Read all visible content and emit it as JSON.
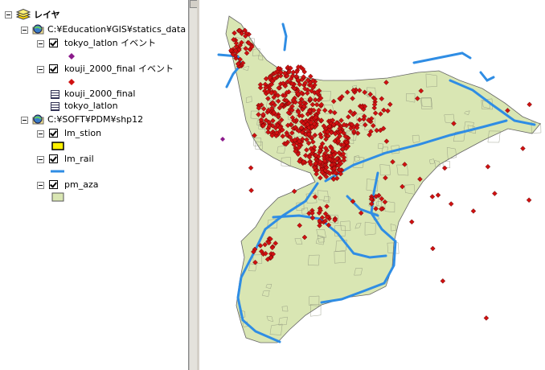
{
  "toc": {
    "title": "レイヤ",
    "groups": [
      {
        "path": "C:¥Education¥GIS¥statics_data",
        "layers": [
          {
            "name": "tokyo_latlon イベント"
          },
          {
            "name": "kouji_2000_final イベント"
          },
          {
            "name": "kouji_2000_final"
          },
          {
            "name": "tokyo_latlon"
          }
        ]
      },
      {
        "path": "C:¥SOFT¥PDM¥shp12",
        "layers": [
          {
            "name": "lm_stion"
          },
          {
            "name": "lm_rail"
          },
          {
            "name": "pm_aza"
          }
        ]
      }
    ]
  }
}
